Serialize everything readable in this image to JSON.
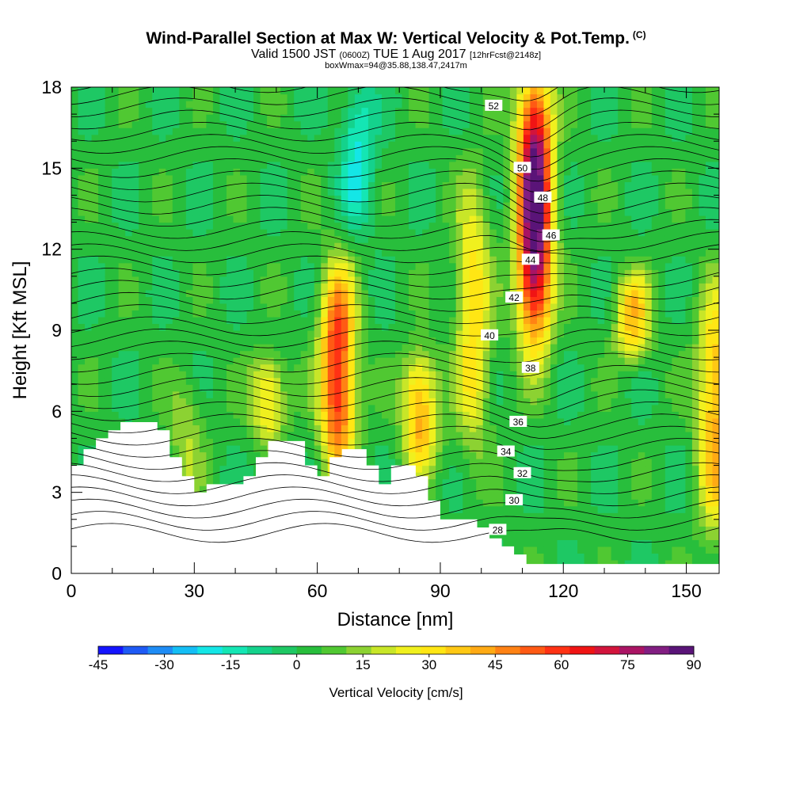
{
  "chart_data": {
    "type": "heatmap",
    "title": "Wind-Parallel Section at Max W: Vertical Velocity & Pot.Temp.",
    "title_suffix": "(C)",
    "subtitle_main": "Valid 1500 JST",
    "subtitle_small1": "(0600Z)",
    "subtitle_date": "TUE 1 Aug 2017",
    "subtitle_small2": "[12hrFcst@2148z]",
    "subtitle2": "boxWmax=94@35.88,138.47,2417m",
    "xlabel": "Distance [nm]",
    "ylabel": "Height [Kft MSL]",
    "xlim": [
      0,
      158
    ],
    "ylim": [
      0,
      18
    ],
    "xticks": [
      0,
      30,
      60,
      90,
      120,
      150
    ],
    "yticks": [
      0,
      3,
      6,
      9,
      12,
      15,
      18
    ],
    "colorbar": {
      "label": "Vertical Velocity [cm/s]",
      "tick_labels": [
        "-45",
        "-30",
        "-15",
        "0",
        "15",
        "30",
        "45",
        "60",
        "75",
        "90"
      ],
      "colors": [
        "#1414ff",
        "#1e5af5",
        "#1e8cf5",
        "#14bef5",
        "#14e6e6",
        "#14e6b4",
        "#14d28c",
        "#1ec864",
        "#28be3c",
        "#50c832",
        "#8cd232",
        "#c8e628",
        "#f0f01e",
        "#ffe614",
        "#ffc814",
        "#ffaa14",
        "#ff8214",
        "#ff5a14",
        "#ff3214",
        "#f01414",
        "#d2143c",
        "#aa1464",
        "#821e82",
        "#5a1478"
      ]
    },
    "contours_potential_temperature": {
      "name": "Pot.Temp.",
      "labels": [
        "28",
        "30",
        "32",
        "34",
        "36",
        "38",
        "40",
        "42",
        "44",
        "46",
        "48",
        "50",
        "52"
      ]
    },
    "vertical_velocity_features": [
      {
        "x": 113,
        "z_range": [
          9,
          18
        ],
        "peak": 90
      },
      {
        "x": 65,
        "z_range": [
          4,
          11
        ],
        "peak": 60
      },
      {
        "x": 48,
        "z_range": [
          5,
          8
        ],
        "peak": 30
      },
      {
        "x": 85,
        "z_range": [
          4,
          8
        ],
        "peak": 40
      },
      {
        "x": 137,
        "z_range": [
          8,
          11
        ],
        "peak": 35
      },
      {
        "x": 157,
        "z_range": [
          2,
          10
        ],
        "peak": 40
      },
      {
        "x": 98,
        "z_range": [
          5,
          14
        ],
        "peak": 30
      },
      {
        "x": 28,
        "z_range": [
          3,
          7
        ],
        "peak": 15
      },
      {
        "x": 70,
        "z_range": [
          13,
          18
        ],
        "peak": -20
      }
    ]
  }
}
